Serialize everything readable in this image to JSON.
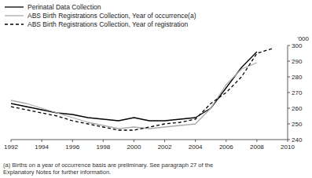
{
  "chart_data": {
    "type": "line",
    "y_label": "'000",
    "footnote": "(a) Births on a year of occurrence basis are preliminary. See paragraph 27 of the\nExplanatory Notes for further information.",
    "x": [
      1992,
      1993,
      1994,
      1995,
      1996,
      1997,
      1998,
      1999,
      2000,
      2001,
      2002,
      2003,
      2004,
      2005,
      2006,
      2007,
      2008,
      2009
    ],
    "series": [
      {
        "name": "Perinatal Data Collection",
        "color": "#000000",
        "line_style": "solid",
        "values": [
          263,
          261,
          259,
          257,
          256,
          254,
          253,
          252,
          254,
          252,
          252,
          253,
          254,
          260,
          273,
          286,
          296,
          null
        ]
      },
      {
        "name": "ABS Birth Registrations Collection, Year of occurrence(a)",
        "color": "#aaaaaa",
        "line_style": "solid",
        "values": [
          265,
          263,
          260,
          257,
          254,
          251,
          249,
          247,
          248,
          247,
          248,
          249,
          250,
          260,
          275,
          285,
          289,
          null
        ]
      },
      {
        "name": "ABS Birth Registrations Collection, Year of registration",
        "color": "#000000",
        "line_style": "dashed",
        "values": [
          261,
          259,
          257,
          255,
          252,
          250,
          248,
          246,
          246,
          248,
          250,
          251,
          253,
          263,
          270,
          280,
          295,
          298
        ]
      }
    ],
    "xlim": [
      1992,
      2010
    ],
    "ylim": [
      240,
      300
    ],
    "xticks": [
      1992,
      1994,
      1996,
      1998,
      2000,
      2002,
      2004,
      2006,
      2008,
      2010
    ],
    "yticks": [
      240,
      250,
      260,
      270,
      280,
      290,
      300
    ],
    "grid": false,
    "legend": "top"
  }
}
